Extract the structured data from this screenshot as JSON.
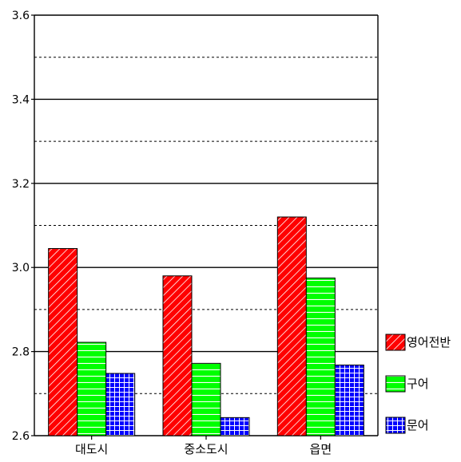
{
  "chart_data": {
    "type": "bar",
    "categories": [
      "대도시",
      "중소도시",
      "읍면"
    ],
    "series": [
      {
        "name": "영어전반",
        "values": [
          3.045,
          2.98,
          3.12
        ],
        "color": "#ff0000",
        "pattern": "diagonal"
      },
      {
        "name": "구어",
        "values": [
          2.822,
          2.772,
          2.975
        ],
        "color": "#00ff00",
        "pattern": "horizontal"
      },
      {
        "name": "문어",
        "values": [
          2.748,
          2.643,
          2.768
        ],
        "color": "#0000ff",
        "pattern": "grid"
      }
    ],
    "ylim": [
      2.6,
      3.6
    ],
    "yticks": [
      "2.6",
      "2.8",
      "3.0",
      "3.2",
      "3.4",
      "3.6"
    ],
    "grid": {
      "major": "solid",
      "minor": "dashed"
    },
    "legend_position": "right"
  }
}
